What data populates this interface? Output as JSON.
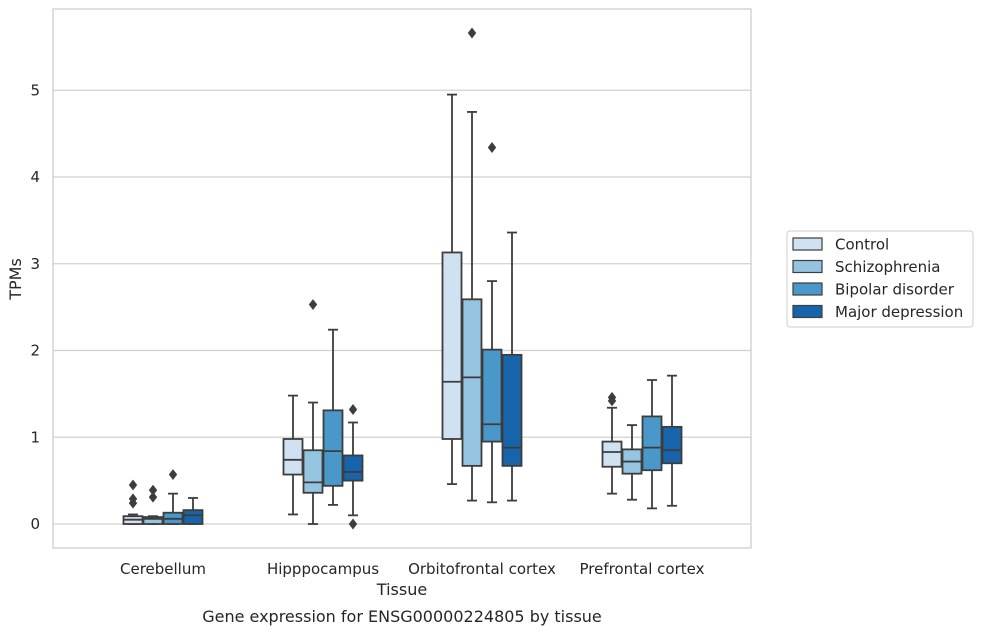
{
  "chart_data": {
    "type": "box",
    "title": "",
    "caption": "Gene expression for ENSG00000224805 by tissue",
    "xlabel": "Tissue",
    "ylabel": "TPMs",
    "ylim": [
      -0.28,
      5.95
    ],
    "yticks": [
      0,
      1,
      2,
      3,
      4,
      5
    ],
    "grid": "horizontal",
    "legend_position": "right",
    "categories": [
      "Cerebellum",
      "Hipppocampus",
      "Orbitofrontal cortex",
      "Prefrontal cortex"
    ],
    "series": [
      {
        "name": "Control",
        "color": "#d0e1f2",
        "boxes": [
          {
            "whislo": 0.0,
            "q1": 0.0,
            "med": 0.05,
            "q3": 0.09,
            "whishi": 0.11,
            "fliers": [
              0.45,
              0.29,
              0.24
            ]
          },
          {
            "whislo": 0.11,
            "q1": 0.57,
            "med": 0.74,
            "q3": 0.98,
            "whishi": 1.48,
            "fliers": []
          },
          {
            "whislo": 0.46,
            "q1": 0.98,
            "med": 1.64,
            "q3": 3.13,
            "whishi": 4.95,
            "fliers": []
          },
          {
            "whislo": 0.35,
            "q1": 0.66,
            "med": 0.83,
            "q3": 0.95,
            "whishi": 1.34,
            "fliers": [
              1.46,
              1.42
            ]
          }
        ]
      },
      {
        "name": "Schizophrenia",
        "color": "#94c4df",
        "boxes": [
          {
            "whislo": 0.0,
            "q1": 0.0,
            "med": 0.06,
            "q3": 0.08,
            "whishi": 0.09,
            "fliers": [
              0.39,
              0.31
            ]
          },
          {
            "whislo": 0.0,
            "q1": 0.36,
            "med": 0.48,
            "q3": 0.85,
            "whishi": 1.4,
            "fliers": [
              2.53
            ]
          },
          {
            "whislo": 0.27,
            "q1": 0.67,
            "med": 1.69,
            "q3": 2.59,
            "whishi": 4.75,
            "fliers": [
              5.66
            ]
          },
          {
            "whislo": 0.28,
            "q1": 0.58,
            "med": 0.72,
            "q3": 0.86,
            "whishi": 1.14,
            "fliers": []
          }
        ]
      },
      {
        "name": "Bipolar disorder",
        "color": "#4a98c9",
        "boxes": [
          {
            "whislo": 0.0,
            "q1": 0.0,
            "med": 0.06,
            "q3": 0.13,
            "whishi": 0.35,
            "fliers": [
              0.57
            ]
          },
          {
            "whislo": 0.22,
            "q1": 0.44,
            "med": 0.84,
            "q3": 1.31,
            "whishi": 2.24,
            "fliers": []
          },
          {
            "whislo": 0.25,
            "q1": 0.95,
            "med": 1.15,
            "q3": 2.01,
            "whishi": 2.8,
            "fliers": [
              4.34
            ]
          },
          {
            "whislo": 0.18,
            "q1": 0.62,
            "med": 0.88,
            "q3": 1.24,
            "whishi": 1.66,
            "fliers": []
          }
        ]
      },
      {
        "name": "Major depression",
        "color": "#1764ab",
        "boxes": [
          {
            "whislo": 0.0,
            "q1": 0.0,
            "med": 0.1,
            "q3": 0.16,
            "whishi": 0.3,
            "fliers": []
          },
          {
            "whislo": 0.1,
            "q1": 0.5,
            "med": 0.6,
            "q3": 0.79,
            "whishi": 1.17,
            "fliers": [
              1.32,
              0.0
            ]
          },
          {
            "whislo": 0.27,
            "q1": 0.67,
            "med": 0.88,
            "q3": 1.95,
            "whishi": 3.36,
            "fliers": []
          },
          {
            "whislo": 0.21,
            "q1": 0.7,
            "med": 0.85,
            "q3": 1.12,
            "whishi": 1.71,
            "fliers": []
          }
        ]
      }
    ]
  }
}
